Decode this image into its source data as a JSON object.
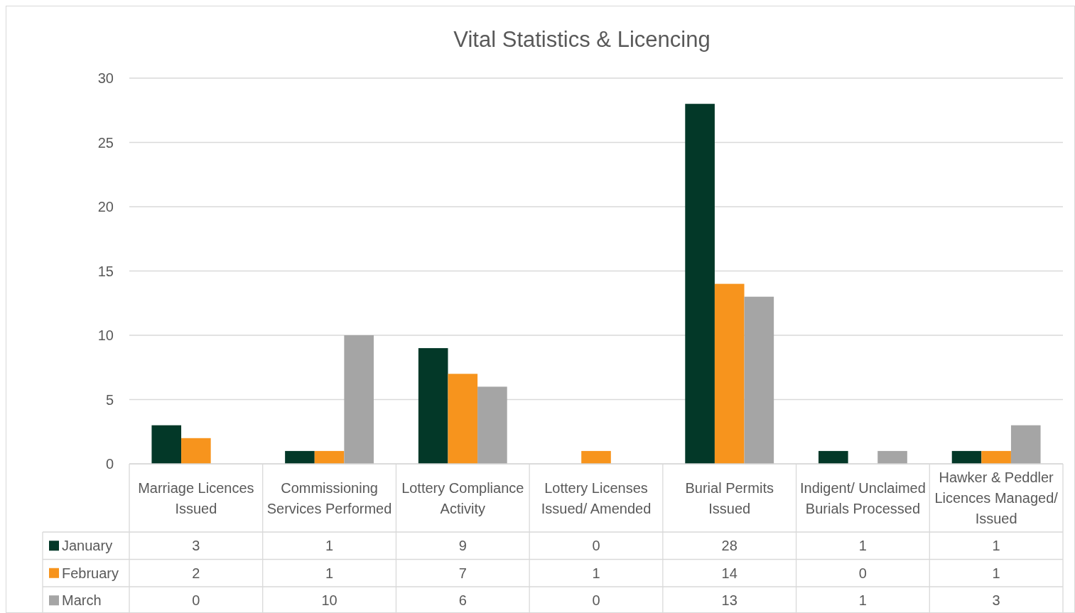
{
  "chart_data": {
    "type": "bar",
    "title": "Vital Statistics & Licencing",
    "categories": [
      "Marriage Licences Issued",
      "Commissioning Services Performed",
      "Lottery Compliance Activity",
      "Lottery Licenses Issued/ Amended",
      "Burial Permits Issued",
      "Indigent/ Unclaimed Burials Processed",
      "Hawker & Peddler Licences Managed/ Issued"
    ],
    "series": [
      {
        "name": "January",
        "color": "#033828",
        "values": [
          3,
          1,
          9,
          0,
          28,
          1,
          1
        ]
      },
      {
        "name": "February",
        "color": "#f7941d",
        "values": [
          2,
          1,
          7,
          1,
          14,
          0,
          1
        ]
      },
      {
        "name": "March",
        "color": "#a5a5a5",
        "values": [
          0,
          10,
          6,
          0,
          13,
          1,
          3
        ]
      }
    ],
    "ylim": [
      0,
      30
    ],
    "yticks": [
      0,
      5,
      10,
      15,
      20,
      25,
      30
    ],
    "grid": "y",
    "legend": "bottom",
    "data_labels": true
  }
}
